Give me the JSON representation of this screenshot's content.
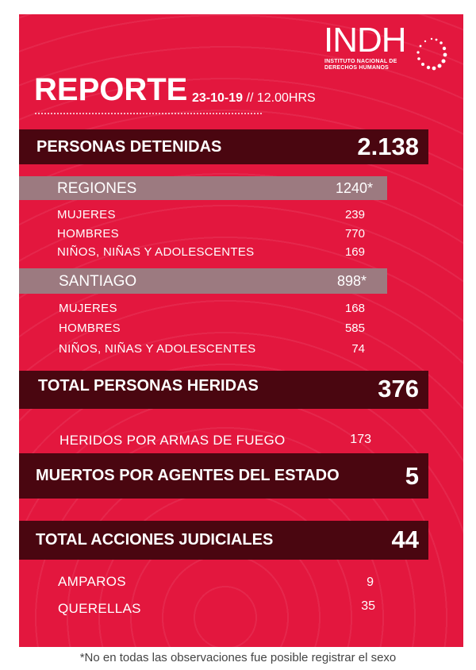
{
  "logo": {
    "acronym": "INDH",
    "line1": "INSTITUTO NACIONAL DE",
    "line2": "DERECHOS HUMANOS"
  },
  "header": {
    "title": "REPORTE",
    "date": "23-10-19",
    "separator": "//",
    "time": "12.00HRS"
  },
  "detenidas": {
    "label": "PERSONAS DETENIDAS",
    "value": "2.138",
    "regiones": {
      "label": "REGIONES",
      "value": "1240*",
      "rows": [
        {
          "label": "MUJERES",
          "value": "239"
        },
        {
          "label": "HOMBRES",
          "value": "770"
        },
        {
          "label": "NIÑOS, NIÑAS Y ADOLESCENTES",
          "value": "169"
        }
      ]
    },
    "santiago": {
      "label": "SANTIAGO",
      "value": "898*",
      "rows": [
        {
          "label": "MUJERES",
          "value": "168"
        },
        {
          "label": "HOMBRES",
          "value": "585"
        },
        {
          "label": "NIÑOS, NIÑAS Y ADOLESCENTES",
          "value": "74"
        }
      ]
    }
  },
  "heridas": {
    "label": "TOTAL PERSONAS HERIDAS",
    "value": "376",
    "rows": [
      {
        "label": "HERIDOS POR ARMAS DE FUEGO",
        "value": "173"
      }
    ]
  },
  "muertos": {
    "label": "MUERTOS POR  AGENTES DEL ESTADO",
    "value": "5"
  },
  "judiciales": {
    "label": "TOTAL ACCIONES JUDICIALES",
    "value": "44",
    "rows": [
      {
        "label": "AMPAROS",
        "value": "9"
      },
      {
        "label": "QUERELLAS",
        "value": "35"
      }
    ]
  },
  "footnote": "*No en todas las observaciones fue posible registrar el sexo",
  "colors": {
    "background": "#e3173e",
    "bar": "#4a0610",
    "subbar": "#9c7a80"
  }
}
